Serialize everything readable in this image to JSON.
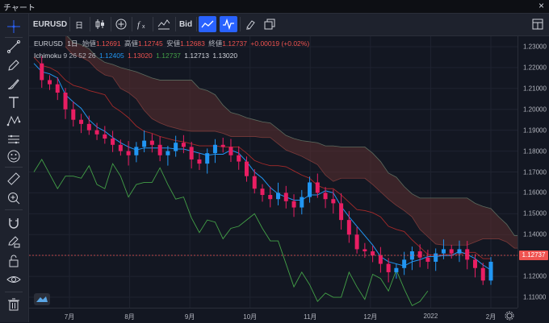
{
  "window": {
    "title": "チャート",
    "close": "×"
  },
  "toolbar": {
    "symbol": "EURUSD",
    "interval": "日",
    "price_source": "Bid"
  },
  "legend": {
    "symbol": "EURUSD",
    "interval": "1日",
    "open_label": "始値",
    "open": "1.12691",
    "high_label": "高値",
    "high": "1.12745",
    "low_label": "安値",
    "low": "1.12683",
    "close_label": "終値",
    "close": "1.12737",
    "change": "+0.00019 (+0.02%)"
  },
  "indicator": {
    "name": "Ichimoku",
    "params": "9 26 52 26",
    "v1": "1.12405",
    "v2": "1.13020",
    "v3": "1.12737",
    "v4": "1.12713",
    "v5": "1.13020"
  },
  "price_axis": {
    "ticks": [
      "1.23000",
      "1.22000",
      "1.21000",
      "1.20000",
      "1.19000",
      "1.18000",
      "1.17000",
      "1.16000",
      "1.15000",
      "1.14000",
      "1.13000",
      "1.12000",
      "1.11000"
    ],
    "last_price": "1.12737"
  },
  "time_axis": {
    "ticks": [
      "7月",
      "8月",
      "9月",
      "10月",
      "11月",
      "12月",
      "2022",
      "2月"
    ]
  },
  "colors": {
    "up": "#26a69a",
    "down": "#ef5350",
    "candle_up": "#2196f3",
    "candle_down": "#e91e63",
    "tenkan": "#2196f3",
    "kijun": "#a52a2a",
    "chikou": "#43a047",
    "cloud_bear": "#5d2f2f",
    "cloud_bull": "#2e4a34",
    "accent": "#2962ff"
  },
  "chart_data": {
    "type": "candlestick",
    "ylim": [
      1.105,
      1.235
    ],
    "x_ticks": [
      "7月",
      "8月",
      "9月",
      "10月",
      "11月",
      "12月",
      "2022",
      "2月"
    ],
    "close_series": [
      1.222,
      1.214,
      1.212,
      1.208,
      1.2,
      1.195,
      1.193,
      1.19,
      1.188,
      1.186,
      1.183,
      1.18,
      1.178,
      1.182,
      1.185,
      1.183,
      1.178,
      1.18,
      1.184,
      1.182,
      1.176,
      1.174,
      1.179,
      1.183,
      1.182,
      1.178,
      1.175,
      1.168,
      1.162,
      1.159,
      1.157,
      1.16,
      1.156,
      1.153,
      1.158,
      1.165,
      1.16,
      1.157,
      1.155,
      1.147,
      1.14,
      1.133,
      1.132,
      1.13,
      1.126,
      1.122,
      1.124,
      1.128,
      1.132,
      1.129,
      1.127,
      1.131,
      1.133,
      1.131,
      1.133,
      1.128,
      1.124,
      1.118,
      1.127
    ]
  }
}
